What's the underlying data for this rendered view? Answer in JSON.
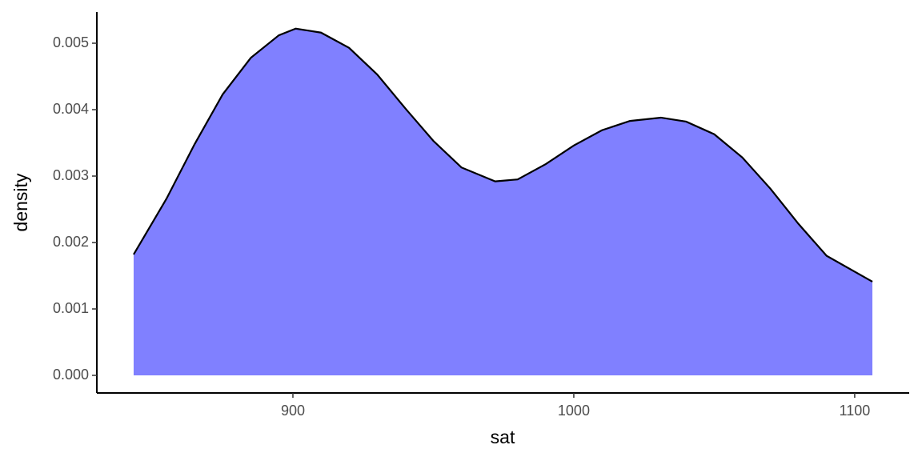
{
  "chart_data": {
    "type": "density",
    "x_label": "sat",
    "y_label": "density",
    "x": [
      843.3,
      855,
      865,
      875,
      885,
      895,
      901,
      910,
      920,
      930,
      940,
      950,
      960,
      972,
      980,
      990,
      1000,
      1010,
      1020,
      1031,
      1040,
      1050,
      1060,
      1070,
      1080,
      1090,
      1106.3
    ],
    "values": [
      0.00182,
      0.00266,
      0.00348,
      0.00423,
      0.00478,
      0.00512,
      0.00522,
      0.00516,
      0.00493,
      0.00453,
      0.00402,
      0.00353,
      0.00313,
      0.00292,
      0.00295,
      0.00318,
      0.00346,
      0.00369,
      0.00383,
      0.00388,
      0.00382,
      0.00363,
      0.00328,
      0.00281,
      0.00228,
      0.0018,
      0.00141
    ],
    "color": "#8080ff",
    "line_color": "#000000",
    "xlim": [
      830.2,
      1119.4
    ],
    "xticks": [
      900,
      1000,
      1100
    ],
    "ylim": [
      -0.000265,
      0.00547
    ],
    "yticks": [
      {
        "value": 0,
        "label": "0.000"
      },
      {
        "value": 0.001,
        "label": "0.001"
      },
      {
        "value": 0.002,
        "label": "0.002"
      },
      {
        "value": 0.003,
        "label": "0.003"
      },
      {
        "value": 0.004,
        "label": "0.004"
      },
      {
        "value": 0.005,
        "label": "0.005"
      }
    ]
  }
}
